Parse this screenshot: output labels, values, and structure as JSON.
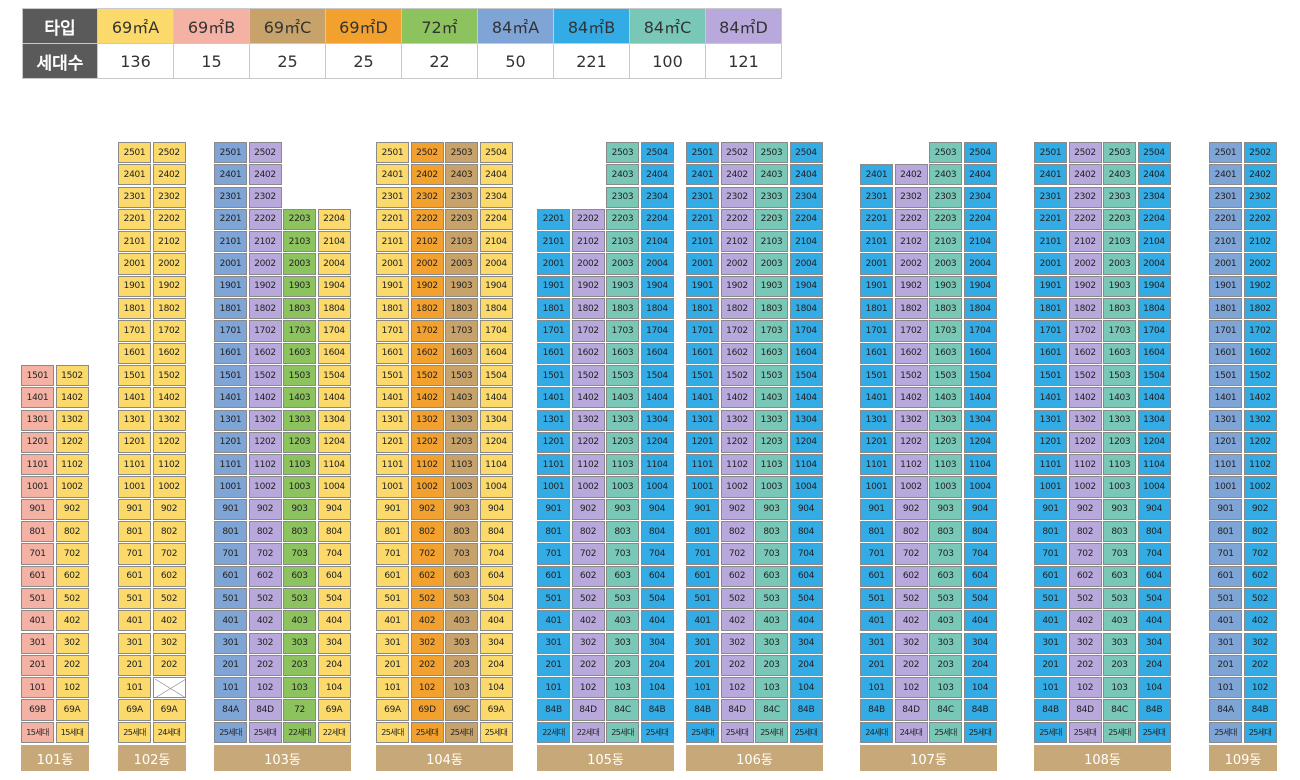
{
  "legend": {
    "type_header": "타입",
    "count_header": "세대수",
    "types": [
      {
        "label": "69㎡A",
        "count": "136",
        "color": "#fbd96b"
      },
      {
        "label": "69㎡B",
        "count": "15",
        "color": "#f3b2a4"
      },
      {
        "label": "69㎡C",
        "count": "25",
        "color": "#c7a26a"
      },
      {
        "label": "69㎡D",
        "count": "25",
        "color": "#f3a12e"
      },
      {
        "label": "72㎡",
        "count": "22",
        "color": "#8dc35f"
      },
      {
        "label": "84㎡A",
        "count": "50",
        "color": "#7fa4d6"
      },
      {
        "label": "84㎡B",
        "count": "221",
        "color": "#33ace6"
      },
      {
        "label": "84㎡C",
        "count": "100",
        "color": "#79c8b7"
      },
      {
        "label": "84㎡D",
        "count": "121",
        "color": "#b9a8dc"
      }
    ]
  },
  "buildings": [
    {
      "name": "101동",
      "floors": 15,
      "lines": [
        {
          "line": "01",
          "type": "69B",
          "households": "15세대",
          "color": "#f3b2a4"
        },
        {
          "line": "02",
          "type": "69A",
          "households": "15세대",
          "color": "#fbd96b"
        }
      ]
    },
    {
      "name": "102동",
      "floors": 25,
      "lines": [
        {
          "line": "01",
          "type": "69A",
          "households": "25세대",
          "color": "#fbd96b"
        },
        {
          "line": "02",
          "type": "69A",
          "households": "24세대",
          "color": "#fbd96b",
          "missing_floors": [
            1
          ]
        }
      ]
    },
    {
      "name": "103동",
      "floors": 25,
      "lines": [
        {
          "line": "01",
          "type": "84A",
          "households": "25세대",
          "color": "#7fa4d6"
        },
        {
          "line": "02",
          "type": "84D",
          "households": "25세대",
          "color": "#b9a8dc"
        },
        {
          "line": "03",
          "type": "72",
          "households": "22세대",
          "color": "#8dc35f",
          "top_floor": 22
        },
        {
          "line": "04",
          "type": "69A",
          "households": "22세대",
          "color": "#fbd96b",
          "top_floor": 22
        }
      ]
    },
    {
      "name": "104동",
      "floors": 25,
      "lines": [
        {
          "line": "01",
          "type": "69A",
          "households": "25세대",
          "color": "#fbd96b"
        },
        {
          "line": "02",
          "type": "69D",
          "households": "25세대",
          "color": "#f3a12e"
        },
        {
          "line": "03",
          "type": "69C",
          "households": "25세대",
          "color": "#c7a26a"
        },
        {
          "line": "04",
          "type": "69A",
          "households": "25세대",
          "color": "#fbd96b"
        }
      ]
    },
    {
      "name": "105동",
      "floors": 25,
      "lines": [
        {
          "line": "01",
          "type": "84B",
          "households": "22세대",
          "color": "#33ace6",
          "top_floor": 22
        },
        {
          "line": "02",
          "type": "84D",
          "households": "22세대",
          "color": "#b9a8dc",
          "top_floor": 22
        },
        {
          "line": "03",
          "type": "84C",
          "households": "25세대",
          "color": "#79c8b7"
        },
        {
          "line": "04",
          "type": "84B",
          "households": "25세대",
          "color": "#33ace6"
        }
      ]
    },
    {
      "name": "106동",
      "floors": 25,
      "lines": [
        {
          "line": "01",
          "type": "84B",
          "households": "25세대",
          "color": "#33ace6"
        },
        {
          "line": "02",
          "type": "84D",
          "households": "25세대",
          "color": "#b9a8dc"
        },
        {
          "line": "03",
          "type": "84C",
          "households": "25세대",
          "color": "#79c8b7"
        },
        {
          "line": "04",
          "type": "84B",
          "households": "25세대",
          "color": "#33ace6"
        }
      ]
    },
    {
      "name": "107동",
      "floors": 25,
      "lines": [
        {
          "line": "01",
          "type": "84B",
          "households": "24세대",
          "color": "#33ace6",
          "top_floor": 24
        },
        {
          "line": "02",
          "type": "84D",
          "households": "24세대",
          "color": "#b9a8dc",
          "top_floor": 24
        },
        {
          "line": "03",
          "type": "84C",
          "households": "25세대",
          "color": "#79c8b7"
        },
        {
          "line": "04",
          "type": "84B",
          "households": "25세대",
          "color": "#33ace6"
        }
      ]
    },
    {
      "name": "108동",
      "floors": 25,
      "lines": [
        {
          "line": "01",
          "type": "84B",
          "households": "25세대",
          "color": "#33ace6"
        },
        {
          "line": "02",
          "type": "84D",
          "households": "25세대",
          "color": "#b9a8dc"
        },
        {
          "line": "03",
          "type": "84C",
          "households": "25세대",
          "color": "#79c8b7"
        },
        {
          "line": "04",
          "type": "84B",
          "households": "25세대",
          "color": "#33ace6"
        }
      ]
    },
    {
      "name": "109동",
      "floors": 25,
      "lines": [
        {
          "line": "01",
          "type": "84A",
          "households": "25세대",
          "color": "#7fa4d6"
        },
        {
          "line": "02",
          "type": "84B",
          "households": "25세대",
          "color": "#33ace6"
        }
      ]
    }
  ]
}
